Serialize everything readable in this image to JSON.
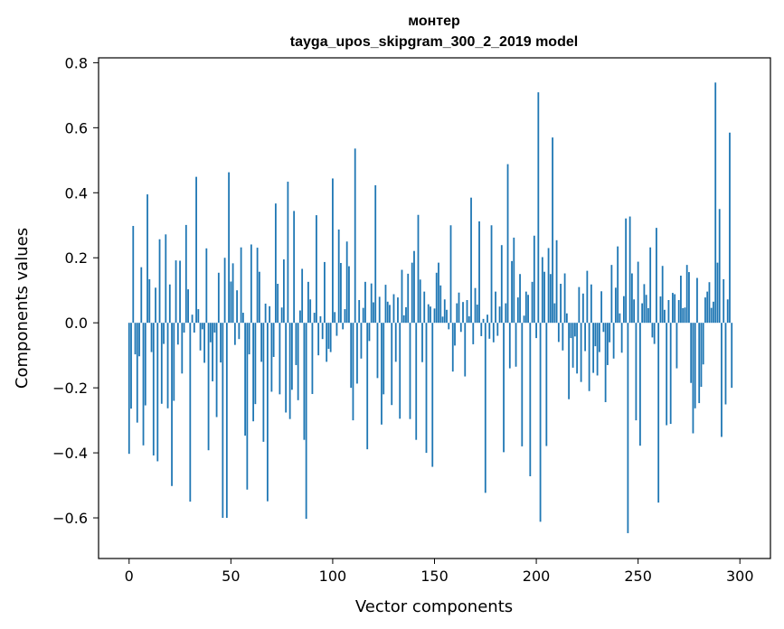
{
  "chart_data": {
    "type": "bar",
    "title": "монтер",
    "subtitle": "tayga_upos_skipgram_300_2_2019 model",
    "xlabel": "Vector components",
    "ylabel": "Components values",
    "xlim": [
      -15,
      315
    ],
    "ylim": [
      -0.725,
      0.815
    ],
    "xticks": [
      0,
      50,
      100,
      150,
      200,
      250,
      300
    ],
    "xtick_labels": [
      "0",
      "50",
      "100",
      "150",
      "200",
      "250",
      "300"
    ],
    "yticks": [
      -0.6,
      -0.4,
      -0.2,
      0.0,
      0.2,
      0.4,
      0.6,
      0.8
    ],
    "ytick_labels": [
      "−0.6",
      "−0.4",
      "−0.2",
      "0.0",
      "0.2",
      "0.4",
      "0.6",
      "0.8"
    ],
    "bar_color": "#1f77b4",
    "grid": false,
    "values": [
      -0.403,
      -0.264,
      0.298,
      -0.097,
      -0.307,
      -0.103,
      0.171,
      -0.377,
      -0.254,
      0.395,
      0.134,
      -0.09,
      -0.408,
      0.108,
      -0.426,
      0.257,
      -0.249,
      -0.065,
      0.272,
      -0.263,
      0.118,
      -0.502,
      -0.24,
      0.192,
      -0.067,
      0.191,
      -0.156,
      -0.03,
      0.301,
      0.103,
      -0.55,
      0.025,
      -0.03,
      0.449,
      0.042,
      -0.085,
      -0.02,
      -0.123,
      0.229,
      -0.392,
      -0.06,
      -0.18,
      -0.03,
      -0.29,
      0.154,
      -0.122,
      -0.6,
      0.2,
      -0.6,
      0.463,
      0.127,
      0.183,
      -0.068,
      0.1,
      -0.05,
      0.232,
      0.031,
      -0.347,
      -0.513,
      -0.097,
      0.241,
      -0.303,
      -0.25,
      0.231,
      0.157,
      -0.12,
      -0.366,
      0.059,
      -0.549,
      0.051,
      -0.212,
      -0.105,
      0.367,
      0.12,
      -0.22,
      0.047,
      0.195,
      -0.276,
      0.434,
      -0.296,
      -0.206,
      0.344,
      -0.13,
      -0.238,
      0.038,
      0.166,
      -0.36,
      -0.603,
      0.126,
      0.072,
      -0.219,
      0.031,
      0.331,
      -0.1,
      0.02,
      -0.05,
      0.187,
      -0.12,
      -0.08,
      -0.09,
      0.444,
      0.033,
      -0.04,
      0.287,
      0.184,
      -0.02,
      0.042,
      0.25,
      0.174,
      -0.2,
      -0.3,
      0.536,
      -0.187,
      0.07,
      -0.11,
      0.046,
      0.126,
      -0.389,
      -0.056,
      0.121,
      0.063,
      0.423,
      -0.17,
      0.08,
      -0.313,
      -0.22,
      0.117,
      0.065,
      0.055,
      -0.253,
      0.088,
      -0.12,
      0.078,
      -0.295,
      0.163,
      0.023,
      0.048,
      0.151,
      -0.296,
      0.185,
      0.221,
      -0.36,
      0.332,
      0.133,
      -0.121,
      0.096,
      -0.4,
      0.057,
      0.05,
      -0.443,
      0.044,
      0.154,
      0.185,
      0.115,
      0.019,
      0.072,
      0.04,
      -0.02,
      0.3,
      -0.15,
      -0.07,
      0.06,
      0.093,
      -0.028,
      0.064,
      -0.165,
      0.07,
      0.02,
      0.385,
      -0.066,
      0.107,
      0.056,
      0.312,
      -0.041,
      0.012,
      -0.523,
      0.025,
      -0.049,
      0.3,
      -0.06,
      0.096,
      -0.04,
      0.05,
      0.239,
      -0.398,
      0.06,
      0.488,
      -0.14,
      0.19,
      0.262,
      -0.135,
      0.078,
      0.15,
      -0.38,
      0.022,
      0.096,
      0.086,
      -0.472,
      0.126,
      0.268,
      -0.047,
      0.709,
      -0.612,
      0.202,
      0.157,
      -0.379,
      0.23,
      0.15,
      0.57,
      0.06,
      0.254,
      -0.059,
      0.12,
      -0.085,
      0.152,
      0.029,
      -0.235,
      -0.047,
      -0.138,
      -0.042,
      -0.156,
      0.11,
      -0.182,
      0.09,
      -0.087,
      0.16,
      -0.21,
      0.118,
      -0.154,
      -0.072,
      -0.162,
      -0.09,
      0.097,
      -0.028,
      -0.244,
      -0.13,
      -0.06,
      0.178,
      -0.11,
      0.108,
      0.235,
      0.029,
      -0.092,
      0.082,
      0.321,
      -0.647,
      0.327,
      0.152,
      0.072,
      -0.3,
      0.188,
      -0.378,
      0.06,
      0.119,
      0.086,
      0.045,
      0.232,
      -0.045,
      -0.065,
      0.292,
      -0.553,
      0.081,
      0.175,
      0.04,
      -0.315,
      0.07,
      -0.311,
      0.092,
      0.088,
      -0.14,
      0.07,
      0.145,
      0.045,
      0.047,
      0.178,
      0.156,
      -0.185,
      -0.34,
      -0.263,
      0.138,
      -0.247,
      -0.197,
      -0.128,
      0.078,
      0.096,
      0.125,
      0.046,
      0.065,
      0.739,
      0.185,
      0.35,
      -0.351,
      0.134,
      -0.251,
      0.072,
      0.585,
      -0.2,
      0.0,
      0.0,
      0.0
    ]
  }
}
